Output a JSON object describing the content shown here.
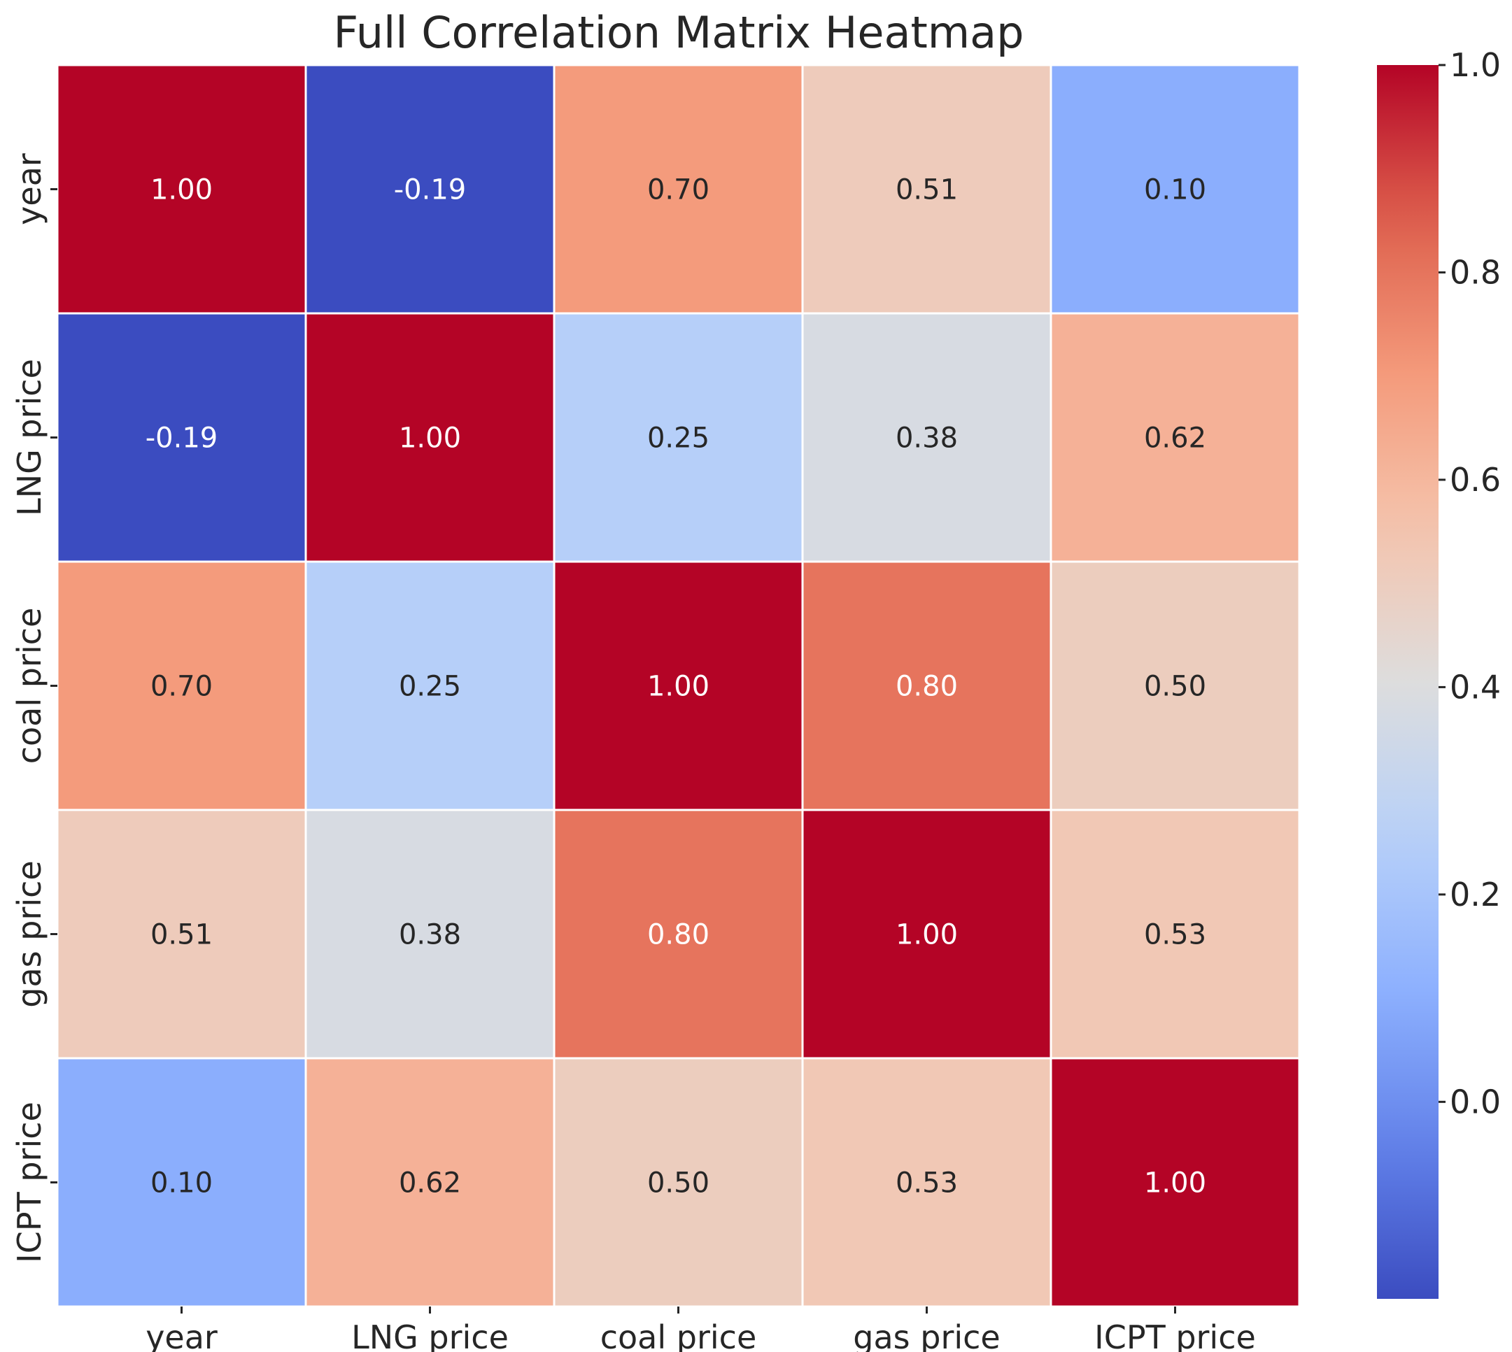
{
  "chart_data": {
    "type": "heatmap",
    "title": "Full Correlation Matrix Heatmap",
    "x_labels": [
      "year",
      "LNG price",
      "coal price",
      "gas price",
      "ICPT price"
    ],
    "y_labels": [
      "year",
      "LNG price",
      "coal price",
      "gas price",
      "ICPT price"
    ],
    "values": [
      [
        1.0,
        -0.19,
        0.7,
        0.51,
        0.1
      ],
      [
        -0.19,
        1.0,
        0.25,
        0.38,
        0.62
      ],
      [
        0.7,
        0.25,
        1.0,
        0.8,
        0.5
      ],
      [
        0.51,
        0.38,
        0.8,
        1.0,
        0.53
      ],
      [
        0.1,
        0.62,
        0.5,
        0.53,
        1.0
      ]
    ],
    "value_format": "0.00",
    "colormap": "coolwarm",
    "vmin": -0.19,
    "vmax": 1.0,
    "colorbar": {
      "ticks": [
        0.0,
        0.2,
        0.4,
        0.6,
        0.8,
        1.0
      ],
      "tick_labels": [
        "0.0",
        "0.2",
        "0.4",
        "0.6",
        "0.8",
        "1.0"
      ],
      "position": "right"
    },
    "annotations_shown": true
  }
}
